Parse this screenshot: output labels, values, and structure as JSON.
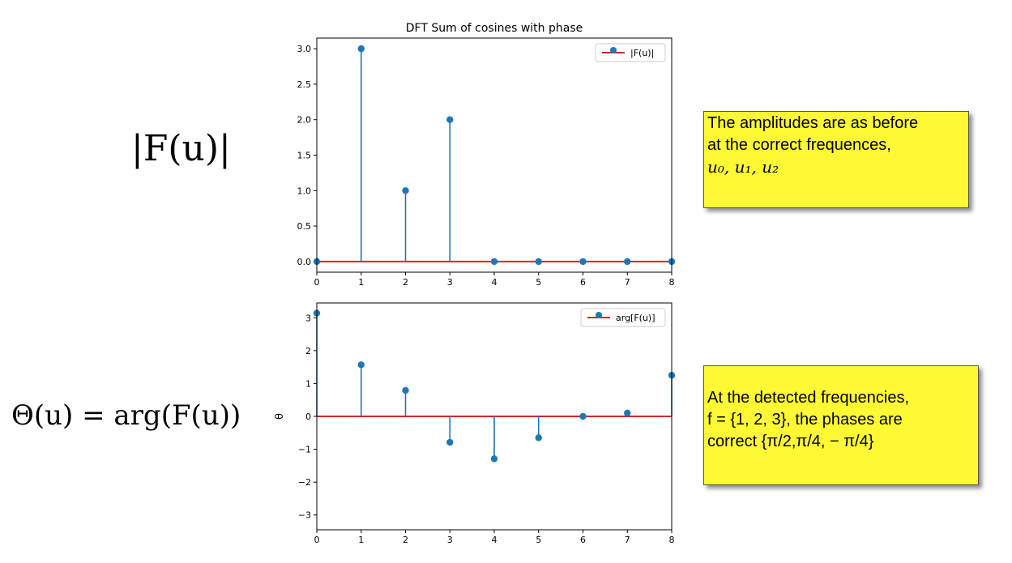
{
  "equations": {
    "top": "|F(u)|",
    "bottom": "Θ(u) = arg(F(u))"
  },
  "notes": {
    "top": [
      "The amplitudes are as before",
      "at the correct frequences,",
      "u₀, u₁, u₂"
    ],
    "bottom": [
      "At the detected frequencies,",
      "f = {1, 2, 3}, the phases are",
      "correct {π/2,π/4, − π/4}"
    ]
  },
  "colors": {
    "stem": "#1f77b4",
    "baseline": "#d62728",
    "note_bg": "#fff935"
  },
  "chart_data": [
    {
      "type": "stem",
      "title": "DFT Sum of cosines with phase",
      "xlabel": "",
      "ylabel": "",
      "x": [
        0,
        1,
        2,
        3,
        4,
        5,
        6,
        7,
        8
      ],
      "values": [
        0.0,
        3.0,
        1.0,
        2.0,
        0.0,
        0.0,
        0.0,
        0.0,
        0.0
      ],
      "xlim": [
        0,
        8
      ],
      "ylim": [
        -0.15,
        3.15
      ],
      "xticks": [
        "0",
        "1",
        "2",
        "3",
        "4",
        "5",
        "6",
        "7",
        "8"
      ],
      "yticks": [
        0.0,
        0.5,
        1.0,
        1.5,
        2.0,
        2.5,
        3.0
      ],
      "ytick_labels": [
        "0.0",
        "0.5",
        "1.0",
        "1.5",
        "2.0",
        "2.5",
        "3.0"
      ],
      "legend": "|F(u)|",
      "legend_position": "top-right",
      "grid": false
    },
    {
      "type": "stem",
      "title": "",
      "xlabel": "",
      "ylabel": "θ",
      "x": [
        0,
        1,
        2,
        3,
        4,
        5,
        6,
        7,
        8
      ],
      "values": [
        3.14,
        1.57,
        0.79,
        -0.79,
        -1.29,
        -0.65,
        0.0,
        0.1,
        1.25
      ],
      "xlim": [
        0,
        8
      ],
      "ylim": [
        -3.45,
        3.45
      ],
      "xticks": [
        "0",
        "1",
        "2",
        "3",
        "4",
        "5",
        "6",
        "7",
        "8"
      ],
      "yticks": [
        -3,
        -2,
        -1,
        0,
        1,
        2,
        3
      ],
      "ytick_labels": [
        "−3",
        "−2",
        "−1",
        "0",
        "1",
        "2",
        "3"
      ],
      "legend": "arg[F(u)]",
      "legend_position": "top-right",
      "grid": false
    }
  ]
}
